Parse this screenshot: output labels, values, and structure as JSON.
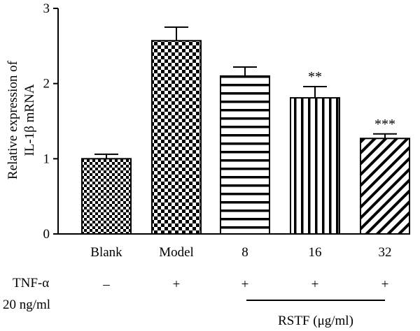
{
  "chart_data": {
    "type": "bar",
    "categories": [
      "Blank",
      "Model",
      "8",
      "16",
      "32"
    ],
    "values": [
      1.0,
      2.57,
      2.1,
      1.81,
      1.27
    ],
    "errors": [
      0.06,
      0.18,
      0.12,
      0.15,
      0.06
    ],
    "annotations": [
      "",
      "",
      "",
      "**",
      "***"
    ],
    "patterns": [
      "checker-small",
      "checker-large",
      "horizontal-lines",
      "vertical-lines",
      "diagonal-lines"
    ],
    "ylabel_line1": "Relative expression of",
    "ylabel_line2": "IL-1β mRNA",
    "ylim": [
      0,
      3
    ],
    "yticks": [
      "0",
      "1",
      "2",
      "3"
    ],
    "treatment_row": {
      "label_line1": "TNF-α",
      "label_line2": "20 ng/ml",
      "marks": [
        "–",
        "+",
        "+",
        "+",
        "+"
      ]
    },
    "group_label": "RSTF (μg/ml)"
  }
}
